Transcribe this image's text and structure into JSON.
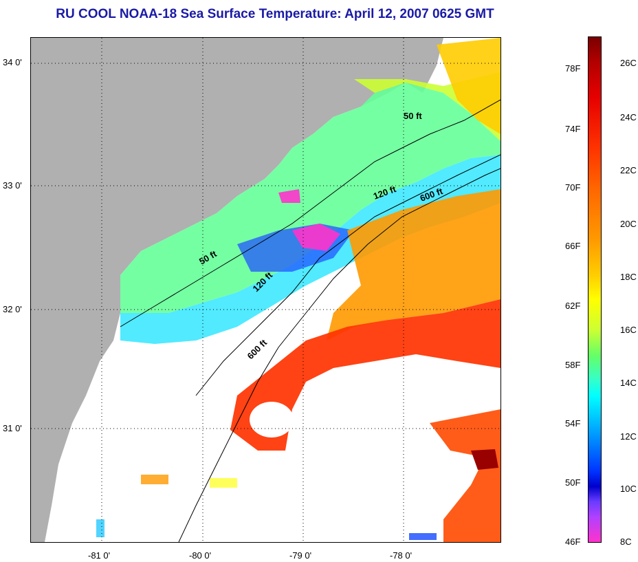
{
  "title": "RU COOL  NOAA-18  Sea Surface Temperature:  April 12, 2007 0625 GMT",
  "map": {
    "latitude_labels": [
      "34 0'",
      "33 0'",
      "32 0'",
      "31 0'"
    ],
    "longitude_labels": [
      "-81 0'",
      "-80 0'",
      "-79 0'",
      "-78 0'"
    ],
    "depth_contours": [
      {
        "label": "50 ft",
        "label_alt": "50 ft"
      },
      {
        "label": "120 ft",
        "label_alt": "120 ft"
      },
      {
        "label": "600 ft",
        "label_alt": "600 ft"
      }
    ],
    "land_color": "#b0b0b0",
    "no_data_color": "#ffffff"
  },
  "colorbar": {
    "fahrenheit": [
      "78F",
      "74F",
      "70F",
      "66F",
      "62F",
      "58F",
      "54F",
      "50F",
      "46F"
    ],
    "celsius": [
      "26C",
      "24C",
      "22C",
      "20C",
      "18C",
      "16C",
      "14C",
      "12C",
      "10C",
      "8C"
    ],
    "range_celsius": [
      8,
      27
    ],
    "colors": [
      "#ff33cc",
      "#6a3cff",
      "#0000cc",
      "#0033ff",
      "#0088ff",
      "#00ffff",
      "#33ffcc",
      "#66ff66",
      "#ffff00",
      "#ff9900",
      "#ff3300",
      "#b30000",
      "#7a0000"
    ]
  }
}
